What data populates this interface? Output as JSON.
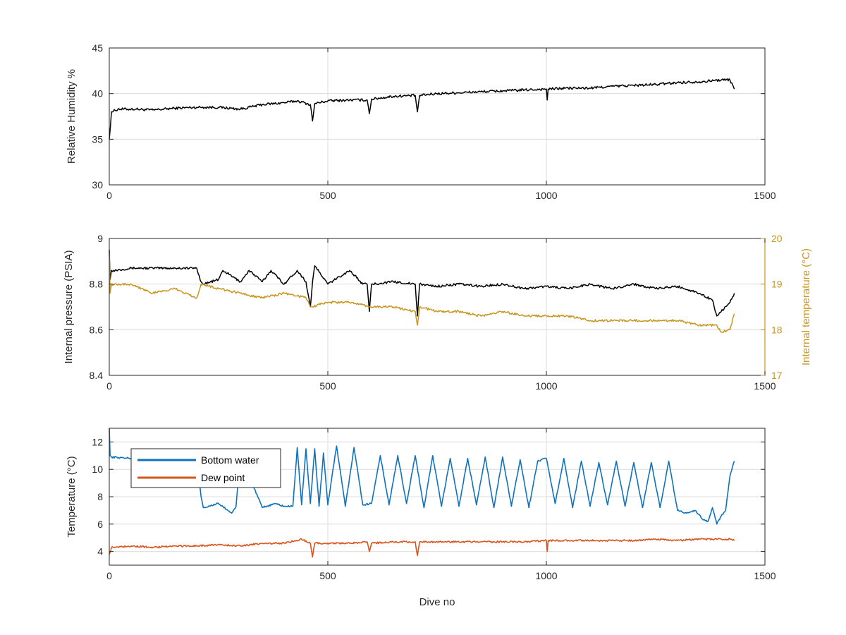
{
  "figure": {
    "xlabel": "Dive no"
  },
  "colors": {
    "black": "#000000",
    "orange": "#C8961E",
    "blue": "#1072BD",
    "red": "#D9541A",
    "grid": "#DCDCDC",
    "axis": "#262626"
  },
  "chart_data": [
    {
      "type": "line",
      "title": "",
      "xlabel": "",
      "ylabel": "Relative Humidity %",
      "xlim": [
        0,
        1500
      ],
      "ylim": [
        30,
        45
      ],
      "xticks": [
        0,
        500,
        1000,
        1500
      ],
      "yticks": [
        30,
        35,
        40,
        45
      ],
      "grid": true,
      "series": [
        {
          "color": "#000000",
          "x": [
            0,
            5,
            20,
            60,
            100,
            150,
            200,
            250,
            300,
            350,
            400,
            430,
            460,
            465,
            470,
            500,
            550,
            590,
            595,
            600,
            650,
            700,
            705,
            710,
            750,
            800,
            850,
            900,
            950,
            1000,
            1002,
            1004,
            1050,
            1100,
            1150,
            1200,
            1250,
            1300,
            1350,
            1400,
            1420,
            1430
          ],
          "y": [
            35.0,
            38.0,
            38.3,
            38.3,
            38.2,
            38.4,
            38.5,
            38.5,
            38.3,
            38.8,
            39.0,
            39.2,
            38.8,
            37.0,
            38.9,
            39.2,
            39.3,
            39.3,
            37.8,
            39.4,
            39.7,
            39.8,
            38.0,
            39.8,
            40.0,
            40.1,
            40.2,
            40.3,
            40.4,
            40.5,
            39.3,
            40.5,
            40.6,
            40.6,
            40.8,
            40.9,
            41.0,
            41.2,
            41.3,
            41.5,
            41.5,
            40.5
          ]
        }
      ]
    },
    {
      "type": "line",
      "title": "",
      "xlabel": "",
      "ylabel": "Internal pressure (PSIA)",
      "y2label": "Internal temperature (°C)",
      "xlim": [
        0,
        1500
      ],
      "ylim": [
        8.4,
        9.0
      ],
      "y2lim": [
        17,
        20
      ],
      "xticks": [
        0,
        500,
        1000,
        1500
      ],
      "yticks": [
        "8.4",
        "8.6",
        "8.8",
        "9"
      ],
      "yticks_values": [
        8.4,
        8.6,
        8.8,
        9.0
      ],
      "y2ticks": [
        17,
        18,
        19,
        20
      ],
      "grid": true,
      "series": [
        {
          "axis": "left",
          "color": "#000000",
          "x": [
            0,
            2,
            5,
            10,
            50,
            100,
            150,
            200,
            210,
            215,
            250,
            260,
            300,
            320,
            350,
            370,
            400,
            430,
            450,
            460,
            465,
            470,
            500,
            550,
            580,
            590,
            595,
            600,
            650,
            700,
            705,
            710,
            750,
            800,
            850,
            900,
            950,
            1000,
            1050,
            1100,
            1150,
            1200,
            1250,
            1300,
            1350,
            1380,
            1390,
            1400,
            1420,
            1430
          ],
          "y": [
            8.95,
            8.82,
            8.86,
            8.86,
            8.87,
            8.87,
            8.87,
            8.87,
            8.81,
            8.8,
            8.82,
            8.86,
            8.81,
            8.86,
            8.81,
            8.86,
            8.8,
            8.86,
            8.81,
            8.7,
            8.81,
            8.88,
            8.8,
            8.86,
            8.8,
            8.8,
            8.68,
            8.8,
            8.81,
            8.8,
            8.66,
            8.8,
            8.79,
            8.8,
            8.79,
            8.8,
            8.78,
            8.79,
            8.78,
            8.8,
            8.78,
            8.8,
            8.78,
            8.79,
            8.76,
            8.73,
            8.66,
            8.68,
            8.72,
            8.76
          ]
        },
        {
          "axis": "right",
          "color": "#C8961E",
          "x": [
            0,
            2,
            5,
            50,
            100,
            150,
            200,
            210,
            250,
            300,
            350,
            400,
            450,
            460,
            500,
            550,
            600,
            650,
            700,
            705,
            710,
            750,
            800,
            850,
            900,
            950,
            1000,
            1050,
            1100,
            1150,
            1200,
            1250,
            1300,
            1350,
            1390,
            1400,
            1420,
            1430
          ],
          "y": [
            19.7,
            18.8,
            19.0,
            19.0,
            18.8,
            18.9,
            18.7,
            19.0,
            18.9,
            18.8,
            18.7,
            18.8,
            18.7,
            18.5,
            18.6,
            18.6,
            18.5,
            18.5,
            18.4,
            18.1,
            18.5,
            18.4,
            18.4,
            18.3,
            18.4,
            18.3,
            18.3,
            18.3,
            18.2,
            18.2,
            18.2,
            18.2,
            18.2,
            18.1,
            18.1,
            17.95,
            18.0,
            18.35
          ]
        }
      ]
    },
    {
      "type": "line",
      "title": "",
      "xlabel": "Dive no",
      "ylabel": "Temperature (°C)",
      "xlim": [
        0,
        1500
      ],
      "ylim": [
        3,
        13
      ],
      "xticks": [
        0,
        500,
        1000,
        1500
      ],
      "yticks": [
        4,
        6,
        8,
        10,
        12
      ],
      "grid": true,
      "legend": "top-left",
      "series": [
        {
          "name": "Bottom water",
          "color": "#1072BD",
          "x": [
            0,
            2,
            5,
            50,
            100,
            150,
            200,
            210,
            215,
            250,
            280,
            290,
            300,
            350,
            380,
            400,
            420,
            430,
            440,
            450,
            460,
            470,
            480,
            490,
            500,
            520,
            540,
            560,
            580,
            600,
            620,
            640,
            660,
            680,
            700,
            720,
            740,
            760,
            780,
            800,
            820,
            840,
            860,
            880,
            900,
            920,
            940,
            960,
            980,
            1000,
            1020,
            1040,
            1060,
            1080,
            1100,
            1120,
            1140,
            1160,
            1180,
            1200,
            1220,
            1240,
            1260,
            1280,
            1300,
            1320,
            1340,
            1360,
            1370,
            1380,
            1390,
            1400,
            1410,
            1420,
            1430
          ],
          "y": [
            13.0,
            11.0,
            10.9,
            10.8,
            10.8,
            10.8,
            10.8,
            8.0,
            7.2,
            7.5,
            6.8,
            7.3,
            11.0,
            7.2,
            7.5,
            7.3,
            7.3,
            11.6,
            7.4,
            11.5,
            7.5,
            11.5,
            7.3,
            11.2,
            7.4,
            11.7,
            7.3,
            11.6,
            7.4,
            7.5,
            11.0,
            7.4,
            11.0,
            7.5,
            11.0,
            7.2,
            11.0,
            7.3,
            10.8,
            7.3,
            10.8,
            7.4,
            10.9,
            7.2,
            10.9,
            7.3,
            10.7,
            7.2,
            10.6,
            10.8,
            7.5,
            10.8,
            7.2,
            10.6,
            7.3,
            10.5,
            7.4,
            10.6,
            7.3,
            10.5,
            7.2,
            10.5,
            7.2,
            10.6,
            7.0,
            6.8,
            7.0,
            6.3,
            6.2,
            7.2,
            6.0,
            6.6,
            7.0,
            9.5,
            10.6
          ]
        },
        {
          "name": "Dew point",
          "color": "#D9541A",
          "x": [
            0,
            5,
            50,
            100,
            150,
            200,
            250,
            300,
            350,
            400,
            440,
            460,
            465,
            470,
            500,
            550,
            590,
            595,
            600,
            650,
            700,
            705,
            710,
            750,
            800,
            850,
            900,
            950,
            1000,
            1002,
            1004,
            1050,
            1100,
            1150,
            1200,
            1250,
            1300,
            1350,
            1400,
            1420,
            1430
          ],
          "y": [
            3.8,
            4.3,
            4.4,
            4.3,
            4.4,
            4.4,
            4.5,
            4.4,
            4.6,
            4.6,
            4.9,
            4.6,
            3.6,
            4.6,
            4.6,
            4.6,
            4.7,
            4.0,
            4.6,
            4.7,
            4.7,
            3.7,
            4.7,
            4.7,
            4.7,
            4.7,
            4.7,
            4.7,
            4.8,
            4.0,
            4.8,
            4.8,
            4.8,
            4.8,
            4.8,
            4.9,
            4.8,
            4.9,
            4.9,
            4.9,
            4.8
          ]
        }
      ]
    }
  ]
}
